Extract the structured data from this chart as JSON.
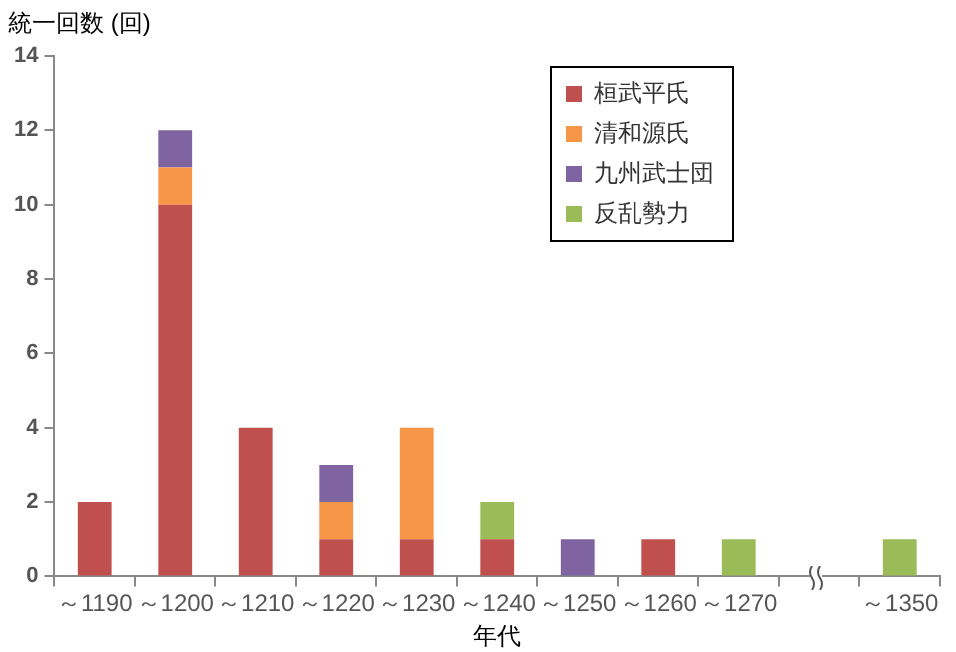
{
  "chart_data": {
    "type": "bar",
    "stacked": true,
    "ylabel": "統一回数 (回)",
    "xlabel": "年代",
    "categories": [
      "～1190",
      "～1200",
      "～1210",
      "～1220",
      "～1230",
      "～1240",
      "～1250",
      "～1260",
      "～1270",
      null,
      "～1350"
    ],
    "series": [
      {
        "name": "桓武平氏",
        "color": "#c0504d",
        "values": [
          2,
          10,
          4,
          1,
          1,
          1,
          null,
          1,
          null,
          null,
          null
        ]
      },
      {
        "name": "清和源氏",
        "color": "#f79646",
        "values": [
          null,
          1,
          null,
          1,
          3,
          null,
          null,
          null,
          null,
          null,
          null
        ]
      },
      {
        "name": "九州武士団",
        "color": "#8064a2",
        "values": [
          null,
          1,
          null,
          1,
          null,
          null,
          1,
          null,
          null,
          null,
          null
        ]
      },
      {
        "name": "反乱勢力",
        "color": "#9bbb59",
        "values": [
          null,
          null,
          null,
          null,
          null,
          1,
          null,
          null,
          1,
          null,
          1
        ]
      }
    ],
    "ylim": [
      0,
      14
    ],
    "yticks": [
      0,
      2,
      4,
      6,
      8,
      10,
      12,
      14
    ],
    "grid": false,
    "legend": "top right"
  }
}
